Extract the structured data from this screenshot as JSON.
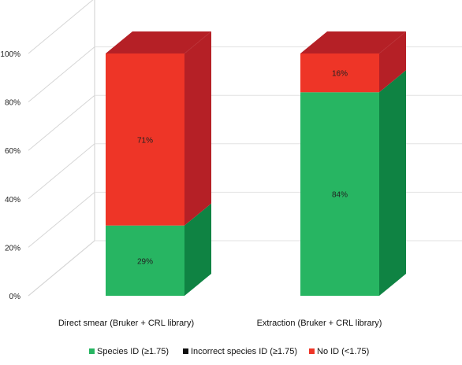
{
  "chart_data": {
    "type": "bar",
    "stacked": true,
    "three_d": true,
    "categories": [
      "Direct smear (Bruker + CRL library)",
      "Extraction (Bruker + CRL library)"
    ],
    "series": [
      {
        "name": "Species ID (≥1.75)",
        "values": [
          29,
          84
        ],
        "labels": [
          "29%",
          "84%"
        ],
        "color": "#27b562",
        "side_color": "#0f8343"
      },
      {
        "name": "Incorrect species ID (≥1.75)",
        "values": [
          0,
          0
        ],
        "labels": [
          "",
          ""
        ],
        "color": "#111111",
        "side_color": "#000000"
      },
      {
        "name": "No ID (<1.75)",
        "values": [
          71,
          16
        ],
        "labels": [
          "71%",
          "16%"
        ],
        "color": "#ee3527",
        "side_color": "#b52026"
      }
    ],
    "y_ticks": [
      "0%",
      "20%",
      "40%",
      "60%",
      "80%",
      "100%"
    ],
    "ylim": [
      0,
      100
    ],
    "grid": true,
    "legend": "bottom"
  }
}
